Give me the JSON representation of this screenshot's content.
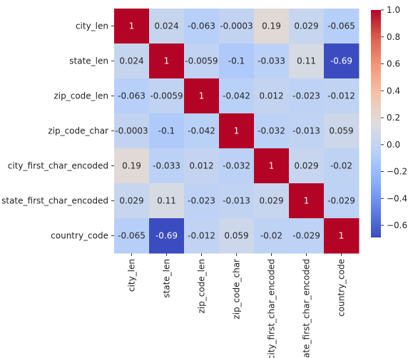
{
  "chart_data": {
    "type": "heatmap",
    "title": "",
    "xlabel": "",
    "ylabel": "",
    "colormap": "coolwarm",
    "rows": [
      "city_len",
      "state_len",
      "zip_code_len",
      "zip_code_char",
      "city_first_char_encoded",
      "state_first_char_encoded",
      "country_code"
    ],
    "columns": [
      "city_len",
      "state_len",
      "zip_code_len",
      "zip_code_char",
      "city_first_char_encoded",
      "state_first_char_encoded",
      "country_code"
    ],
    "values": [
      [
        1,
        0.024,
        -0.063,
        -0.0003,
        0.19,
        0.029,
        -0.065
      ],
      [
        0.024,
        1,
        -0.0059,
        -0.1,
        -0.033,
        0.11,
        -0.69
      ],
      [
        -0.063,
        -0.0059,
        1,
        -0.042,
        0.012,
        -0.023,
        -0.012
      ],
      [
        -0.0003,
        -0.1,
        -0.042,
        1,
        -0.032,
        -0.013,
        0.059
      ],
      [
        0.19,
        -0.033,
        0.012,
        -0.032,
        1,
        0.029,
        -0.02
      ],
      [
        0.029,
        0.11,
        -0.023,
        -0.013,
        0.029,
        1,
        -0.029
      ],
      [
        -0.065,
        -0.69,
        -0.012,
        0.059,
        -0.02,
        -0.029,
        1
      ]
    ],
    "annotations": [
      [
        "1",
        "0.024",
        "-0.063",
        "-0.0003",
        "0.19",
        "0.029",
        "-0.065"
      ],
      [
        "0.024",
        "1",
        "-0.0059",
        "-0.1",
        "-0.033",
        "0.11",
        "-0.69"
      ],
      [
        "-0.063",
        "-0.0059",
        "1",
        "-0.042",
        "0.012",
        "-0.023",
        "-0.012"
      ],
      [
        "-0.0003",
        "-0.1",
        "-0.042",
        "1",
        "-0.032",
        "-0.013",
        "0.059"
      ],
      [
        "0.19",
        "-0.033",
        "0.012",
        "-0.032",
        "1",
        "0.029",
        "-0.02"
      ],
      [
        "0.029",
        "0.11",
        "-0.023",
        "-0.013",
        "0.029",
        "1",
        "-0.029"
      ],
      [
        "-0.065",
        "-0.69",
        "-0.012",
        "0.059",
        "-0.02",
        "-0.029",
        "1"
      ]
    ],
    "colorbar": {
      "vmin": -0.69,
      "vmax": 1,
      "ticks": [
        1.0,
        0.8,
        0.6,
        0.4,
        0.2,
        0.0,
        -0.2,
        -0.4,
        -0.6
      ],
      "tick_labels": [
        "1.0",
        "0.8",
        "0.6",
        "0.4",
        "0.2",
        "0.0",
        "−0.2",
        "−0.4",
        "−0.6"
      ]
    },
    "grid": false,
    "legend": "colorbar-right"
  }
}
